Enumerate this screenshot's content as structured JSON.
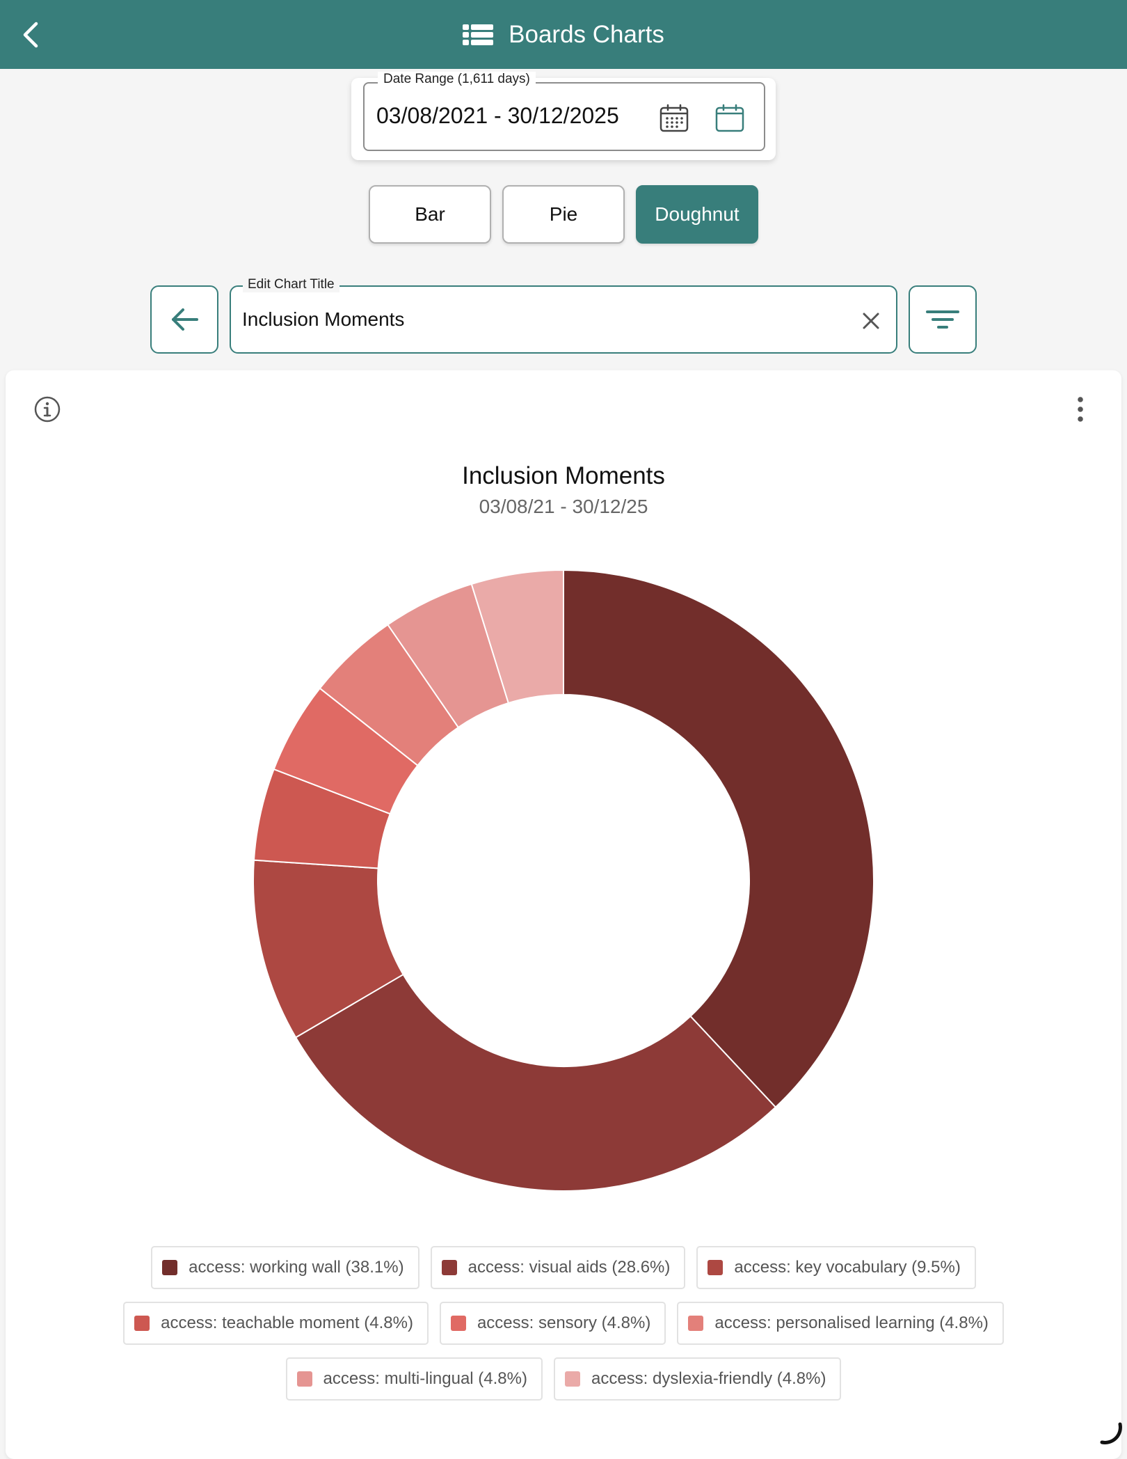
{
  "header": {
    "title": "Boards Charts",
    "icon": "boards-icon",
    "back_icon": "chevron-left-icon"
  },
  "date_range": {
    "label": "Date Range (1,611 days)",
    "value": "03/08/2021 - 30/12/2025",
    "calendar_icons": [
      "calendar-grid-icon",
      "calendar-icon"
    ]
  },
  "chart_types": [
    {
      "label": "Bar",
      "active": false
    },
    {
      "label": "Pie",
      "active": false
    },
    {
      "label": "Doughnut",
      "active": true
    }
  ],
  "title_editor": {
    "label": "Edit Chart Title",
    "value": "Inclusion Moments",
    "back_icon": "arrow-left-icon",
    "clear_icon": "close-icon",
    "filter_icon": "filter-icon"
  },
  "card": {
    "info_icon": "info-icon",
    "menu_icon": "more-vertical-icon"
  },
  "chart_data": {
    "type": "doughnut",
    "title": "Inclusion Moments",
    "subtitle": "03/08/21 - 30/12/25",
    "legend_position": "bottom",
    "slices": [
      {
        "label": "access: working wall (38.1%)",
        "value": 38.1,
        "color": "#722e2b"
      },
      {
        "label": "access: visual aids (28.6%)",
        "value": 28.6,
        "color": "#8d3a37"
      },
      {
        "label": "access: key vocabulary (9.5%)",
        "value": 9.5,
        "color": "#ad4842"
      },
      {
        "label": "access: teachable moment (4.8%)",
        "value": 4.8,
        "color": "#cd5851"
      },
      {
        "label": "access: sensory (4.8%)",
        "value": 4.8,
        "color": "#e06a64"
      },
      {
        "label": "access: personalised learning (4.8%)",
        "value": 4.8,
        "color": "#e3807a"
      },
      {
        "label": "access: multi-lingual (4.8%)",
        "value": 4.8,
        "color": "#e59592"
      },
      {
        "label": "access: dyslexia-friendly (4.8%)",
        "value": 4.8,
        "color": "#eaaaa8"
      }
    ]
  }
}
